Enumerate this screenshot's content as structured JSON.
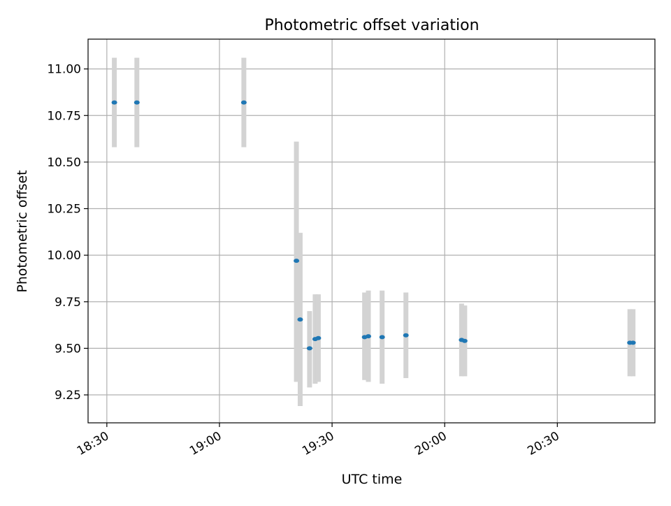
{
  "chart_data": {
    "type": "scatter",
    "title": "Photometric offset variation",
    "xlabel": "UTC time",
    "ylabel": "Photometric offset",
    "grid": true,
    "xlim": [
      "18:25",
      "20:56"
    ],
    "ylim": [
      9.1,
      11.16
    ],
    "x_ticks": [
      "18:30",
      "19:00",
      "19:30",
      "20:00",
      "20:30"
    ],
    "y_ticks": [
      9.25,
      9.5,
      9.75,
      10.0,
      10.25,
      10.5,
      10.75,
      11.0
    ],
    "y_tick_labels": [
      "9.25",
      "9.50",
      "9.75",
      "10.00",
      "10.25",
      "10.50",
      "10.75",
      "11.00"
    ],
    "colors": {
      "points": "#1f77b4",
      "errorbars": "#d3d3d3",
      "grid": "#b0b0b0"
    },
    "points": [
      {
        "t": "18:32",
        "y": 10.82,
        "err_low": 10.58,
        "err_high": 11.06
      },
      {
        "t": "18:38",
        "y": 10.82,
        "err_low": 10.58,
        "err_high": 11.06
      },
      {
        "t": "19:06:30",
        "y": 10.82,
        "err_low": 10.58,
        "err_high": 11.06
      },
      {
        "t": "19:20:30",
        "y": 9.97,
        "err_low": 9.32,
        "err_high": 10.61
      },
      {
        "t": "19:21:30",
        "y": 9.655,
        "err_low": 9.19,
        "err_high": 10.12
      },
      {
        "t": "19:24",
        "y": 9.5,
        "err_low": 9.29,
        "err_high": 9.7
      },
      {
        "t": "19:25:30",
        "y": 9.55,
        "err_low": 9.31,
        "err_high": 9.79
      },
      {
        "t": "19:26:20",
        "y": 9.555,
        "err_low": 9.32,
        "err_high": 9.79
      },
      {
        "t": "19:38:40",
        "y": 9.56,
        "err_low": 9.33,
        "err_high": 9.8
      },
      {
        "t": "19:39:40",
        "y": 9.565,
        "err_low": 9.32,
        "err_high": 9.81
      },
      {
        "t": "19:43:20",
        "y": 9.56,
        "err_low": 9.31,
        "err_high": 9.81
      },
      {
        "t": "19:49:40",
        "y": 9.57,
        "err_low": 9.34,
        "err_high": 9.8
      },
      {
        "t": "20:04:30",
        "y": 9.545,
        "err_low": 9.35,
        "err_high": 9.74
      },
      {
        "t": "20:05:20",
        "y": 9.54,
        "err_low": 9.35,
        "err_high": 9.73
      },
      {
        "t": "20:49:20",
        "y": 9.53,
        "err_low": 9.35,
        "err_high": 9.71
      },
      {
        "t": "20:50:10",
        "y": 9.53,
        "err_low": 9.35,
        "err_high": 9.71
      }
    ]
  }
}
